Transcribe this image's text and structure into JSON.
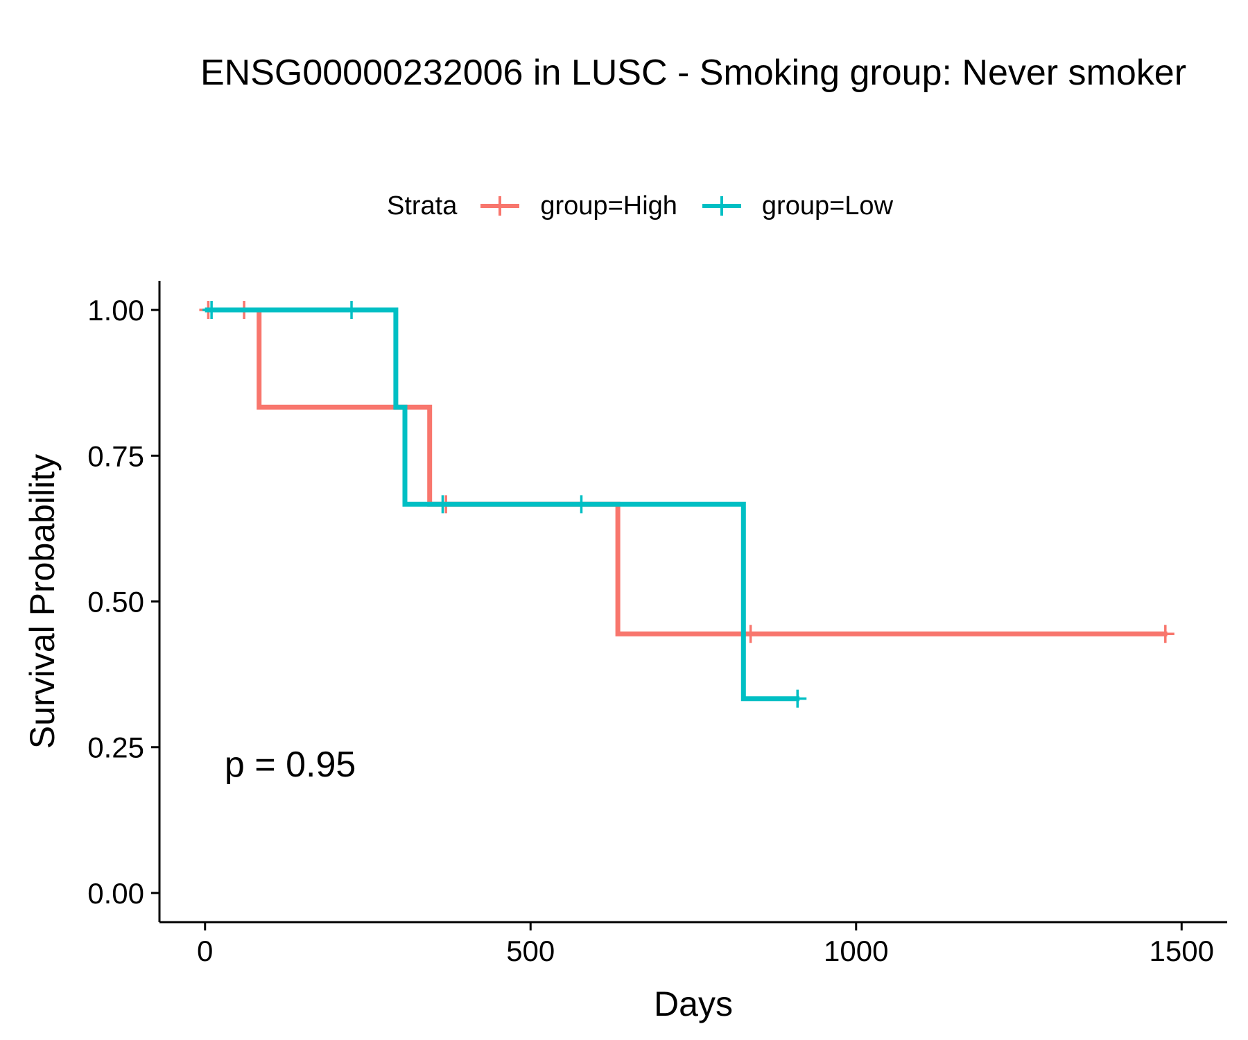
{
  "chart_data": {
    "type": "line",
    "title": "ENSG00000232006 in LUSC - Smoking group: Never smoker",
    "xlabel": "Days",
    "ylabel": "Survival Probability",
    "xlim": [
      -70,
      1570
    ],
    "ylim": [
      -0.05,
      1.05
    ],
    "xticks": [
      0,
      500,
      1000,
      1500
    ],
    "xtick_labels": [
      "0",
      "500",
      "1000",
      "1500"
    ],
    "yticks": [
      0,
      0.25,
      0.5,
      0.75,
      1
    ],
    "ytick_labels": [
      "0.00",
      "0.25",
      "0.50",
      "0.75",
      "1.00"
    ],
    "grid": false,
    "legend": {
      "title": "Strata",
      "placement": "top"
    },
    "annotation": "p = 0.95",
    "annotation_position": {
      "x": 30,
      "y": 0.2
    },
    "series": [
      {
        "name": "group=High",
        "color": "#F8766D",
        "steps": [
          [
            0,
            1.0
          ],
          [
            83,
            1.0
          ],
          [
            83,
            0.8333
          ],
          [
            345,
            0.8333
          ],
          [
            345,
            0.6667
          ],
          [
            634,
            0.6667
          ],
          [
            634,
            0.4444
          ],
          [
            1478,
            0.4444
          ]
        ],
        "censor": [
          [
            5,
            1.0
          ],
          [
            60,
            1.0
          ],
          [
            370,
            0.6667
          ],
          [
            838,
            0.4444
          ],
          [
            1475,
            0.4444
          ]
        ]
      },
      {
        "name": "group=Low",
        "color": "#00BFC4",
        "steps": [
          [
            0,
            1.0
          ],
          [
            293,
            1.0
          ],
          [
            293,
            0.8333
          ],
          [
            307,
            0.8333
          ],
          [
            307,
            0.6667
          ],
          [
            827,
            0.6667
          ],
          [
            827,
            0.3333
          ],
          [
            913,
            0.3333
          ]
        ],
        "censor": [
          [
            10,
            1.0
          ],
          [
            225,
            1.0
          ],
          [
            365,
            0.6667
          ],
          [
            578,
            0.6667
          ],
          [
            910,
            0.3333
          ]
        ]
      }
    ]
  }
}
